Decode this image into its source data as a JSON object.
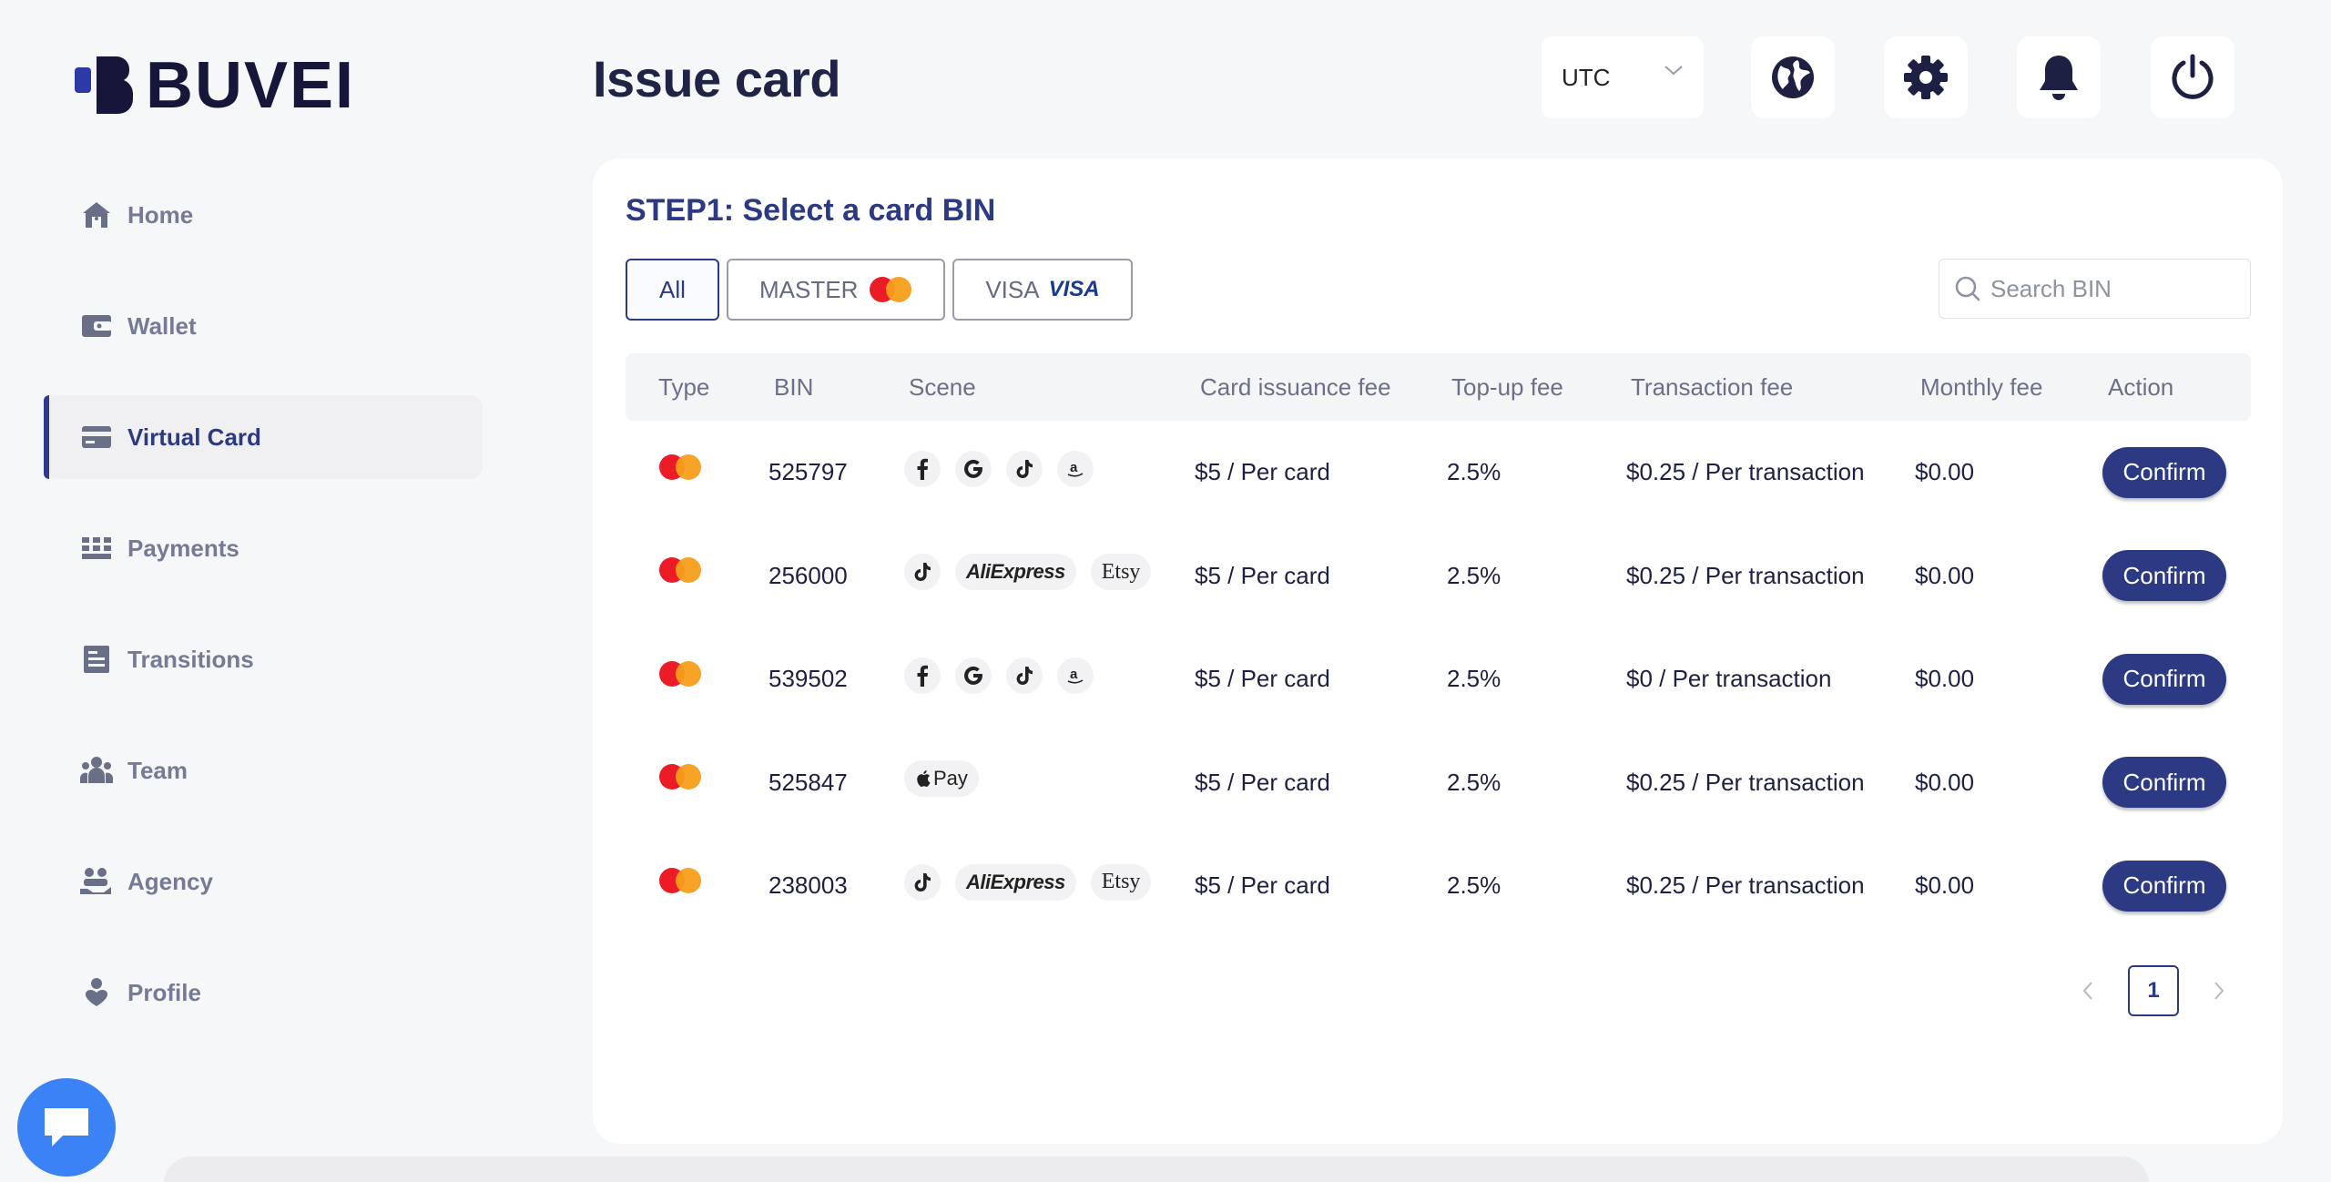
{
  "brand": {
    "name": "BUVEI",
    "color": "#16163a"
  },
  "sidebar": {
    "items": [
      {
        "label": "Home",
        "icon": "home-icon"
      },
      {
        "label": "Wallet",
        "icon": "wallet-icon"
      },
      {
        "label": "Virtual Card",
        "icon": "card-icon",
        "active": true
      },
      {
        "label": "Payments",
        "icon": "grid-icon"
      },
      {
        "label": "Transitions",
        "icon": "document-icon"
      },
      {
        "label": "Team",
        "icon": "team-icon"
      },
      {
        "label": "Agency",
        "icon": "agency-icon"
      },
      {
        "label": "Profile",
        "icon": "profile-icon"
      }
    ]
  },
  "header": {
    "title": "Issue card",
    "timezone": "UTC",
    "icons": [
      "globe-icon",
      "gear-icon",
      "bell-icon",
      "power-icon"
    ]
  },
  "step": {
    "title": "STEP1: Select a card BIN"
  },
  "filters": {
    "all": "All",
    "master": "MASTER",
    "visa": "VISA",
    "visa_logo": "VISA"
  },
  "search": {
    "placeholder": "Search BIN",
    "value": ""
  },
  "table": {
    "columns": [
      "Type",
      "BIN",
      "Scene",
      "Card issuance fee",
      "Top-up fee",
      "Transaction fee",
      "Monthly fee",
      "Action"
    ],
    "rows": [
      {
        "type": "mastercard",
        "bin": "525797",
        "scene": [
          "facebook",
          "google",
          "tiktok",
          "amazon"
        ],
        "issuance_fee": "$5 / Per card",
        "topup_fee": "2.5%",
        "transaction_fee": "$0.25 / Per transaction",
        "monthly_fee": "$0.00",
        "action": "Confirm"
      },
      {
        "type": "mastercard",
        "bin": "256000",
        "scene": [
          "tiktok",
          "aliexpress",
          "etsy"
        ],
        "issuance_fee": "$5 / Per card",
        "topup_fee": "2.5%",
        "transaction_fee": "$0.25 / Per transaction",
        "monthly_fee": "$0.00",
        "action": "Confirm"
      },
      {
        "type": "mastercard",
        "bin": "539502",
        "scene": [
          "facebook",
          "google",
          "tiktok",
          "amazon"
        ],
        "issuance_fee": "$5 / Per card",
        "topup_fee": "2.5%",
        "transaction_fee": "$0 / Per transaction",
        "monthly_fee": "$0.00",
        "action": "Confirm"
      },
      {
        "type": "mastercard",
        "bin": "525847",
        "scene": [
          "applepay"
        ],
        "issuance_fee": "$5 / Per card",
        "topup_fee": "2.5%",
        "transaction_fee": "$0.25 / Per transaction",
        "monthly_fee": "$0.00",
        "action": "Confirm"
      },
      {
        "type": "mastercard",
        "bin": "238003",
        "scene": [
          "tiktok",
          "aliexpress",
          "etsy"
        ],
        "issuance_fee": "$5 / Per card",
        "topup_fee": "2.5%",
        "transaction_fee": "$0.25 / Per transaction",
        "monthly_fee": "$0.00",
        "action": "Confirm"
      }
    ]
  },
  "scene_labels": {
    "aliexpress": "AliExpress",
    "etsy": "Etsy",
    "applepay": "Pay",
    "facebook": "f",
    "google": "G",
    "amazon": "a"
  },
  "pagination": {
    "current": "1"
  },
  "colors": {
    "accent": "#2c3a83",
    "chat": "#3b82f6",
    "mc_red": "#eb001b",
    "mc_orange": "#f79e1b"
  }
}
